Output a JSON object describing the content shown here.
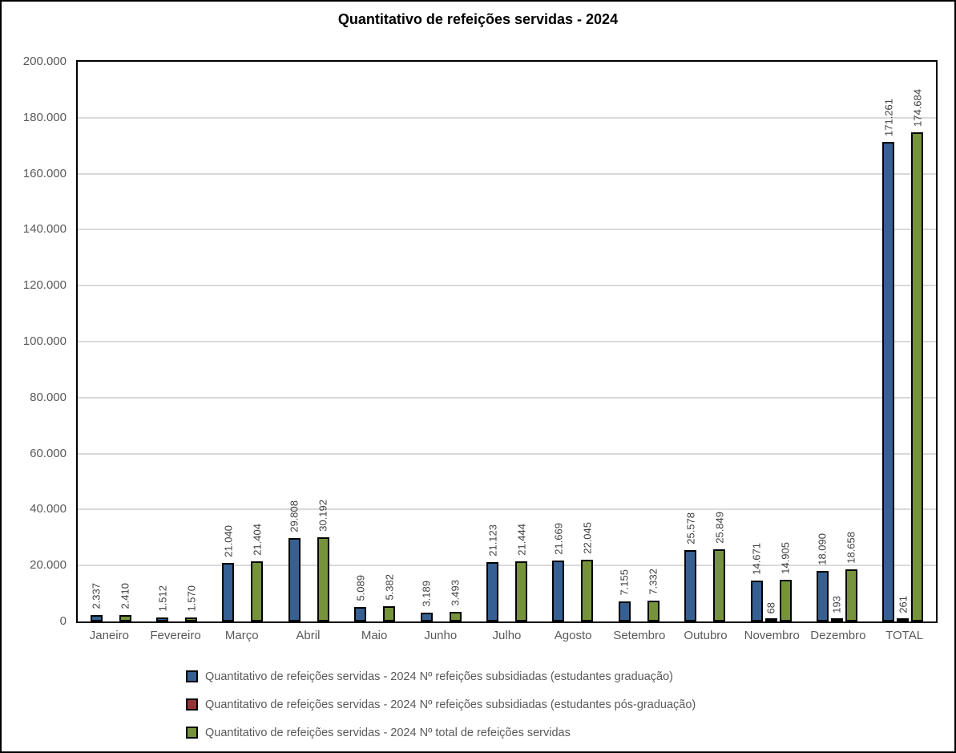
{
  "title": "Quantitativo de refeições servidas - 2024",
  "colors": {
    "series_graduacao": "#366092",
    "series_pos_graduacao": "#943634",
    "series_total": "#76933C",
    "gridline": "#D9D9D9",
    "axis_text": "#595959",
    "data_label_text": "#404040",
    "plot_border": "#000000"
  },
  "chart_data": {
    "type": "bar",
    "title": "Quantitativo de refeições servidas - 2024",
    "xlabel": "",
    "ylabel": "",
    "ylim": [
      0,
      200000
    ],
    "y_tick_step": 20000,
    "y_tick_labels": [
      "0",
      "20.000",
      "40.000",
      "60.000",
      "80.000",
      "100.000",
      "120.000",
      "140.000",
      "160.000",
      "180.000",
      "200.000"
    ],
    "grid": true,
    "legend_position": "bottom",
    "data_labels_rotation": 90,
    "categories": [
      "Janeiro",
      "Fevereiro",
      "Março",
      "Abril",
      "Maio",
      "Junho",
      "Julho",
      "Agosto",
      "Setembro",
      "Outubro",
      "Novembro",
      "Dezembro",
      "TOTAL"
    ],
    "series": [
      {
        "key": "graduacao",
        "name": "Quantitativo de refeições servidas - 2024 Nº refeições subsidiadas (estudantes graduação)",
        "color": "#366092",
        "values": [
          2337,
          1512,
          21040,
          29808,
          5089,
          3189,
          21123,
          21669,
          7155,
          25578,
          14671,
          18090,
          171261
        ],
        "labels": [
          "2.337",
          "1.512",
          "21.040",
          "29.808",
          "5.089",
          "3.189",
          "21.123",
          "21.669",
          "7.155",
          "25.578",
          "14.671",
          "18.090",
          "171.261"
        ]
      },
      {
        "key": "pos-graduacao",
        "name": "Quantitativo de refeições servidas - 2024 Nº refeições subsidiadas (estudantes pós-graduação)",
        "color": "#943634",
        "values": [
          null,
          null,
          null,
          null,
          null,
          null,
          null,
          null,
          null,
          null,
          68,
          193,
          261
        ],
        "labels": [
          null,
          null,
          null,
          null,
          null,
          null,
          null,
          null,
          null,
          null,
          "68",
          "193",
          "261"
        ]
      },
      {
        "key": "total",
        "name": "Quantitativo de refeições servidas - 2024 Nº total de refeições servidas",
        "color": "#76933C",
        "values": [
          2410,
          1570,
          21404,
          30192,
          5382,
          3493,
          21444,
          22045,
          7332,
          25849,
          14905,
          18658,
          174684
        ],
        "labels": [
          "2.410",
          "1.570",
          "21.404",
          "30.192",
          "5.382",
          "3.493",
          "21.444",
          "22.045",
          "7.332",
          "25.849",
          "14.905",
          "18.658",
          "174.684"
        ]
      }
    ]
  },
  "legend": {
    "items": [
      {
        "label": "Quantitativo de refeições servidas - 2024 Nº refeições subsidiadas (estudantes graduação)",
        "color": "#366092"
      },
      {
        "label": "Quantitativo de refeições servidas - 2024 Nº refeições subsidiadas (estudantes pós-graduação)",
        "color": "#943634"
      },
      {
        "label": "Quantitativo de refeições servidas - 2024 Nº total de refeições servidas",
        "color": "#76933C"
      }
    ]
  }
}
